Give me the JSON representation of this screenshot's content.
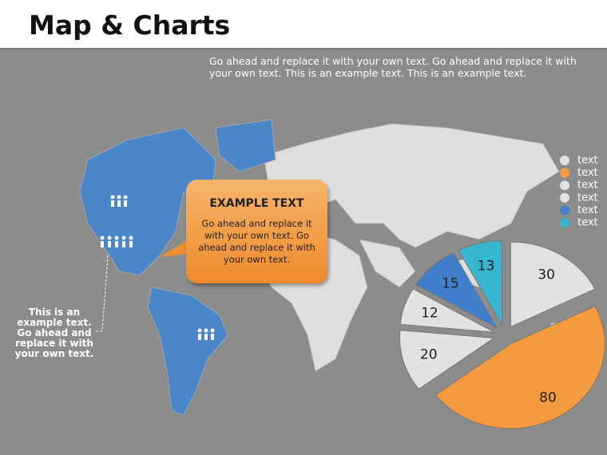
{
  "header": {
    "title": "Map & Charts"
  },
  "description": "Go ahead and replace it with your own text. Go ahead and replace it with your own text. This is an example text. This is an example text.",
  "callout": {
    "title": "EXAMPLE TEXT",
    "body": "Go ahead and replace it with your own text. Go ahead and replace it with your own text."
  },
  "side_note": "This is an example text. Go ahead and replace it with your own text.",
  "chart_data": {
    "type": "pie",
    "categories": [
      "text",
      "text",
      "text",
      "text",
      "text",
      "text"
    ],
    "values": [
      30,
      80,
      20,
      12,
      15,
      13
    ],
    "colors": [
      "#e2e2e2",
      "#f39a3e",
      "#e2e2e2",
      "#e2e2e2",
      "#3f7fcc",
      "#39b6cf"
    ],
    "legend": "top-right"
  }
}
